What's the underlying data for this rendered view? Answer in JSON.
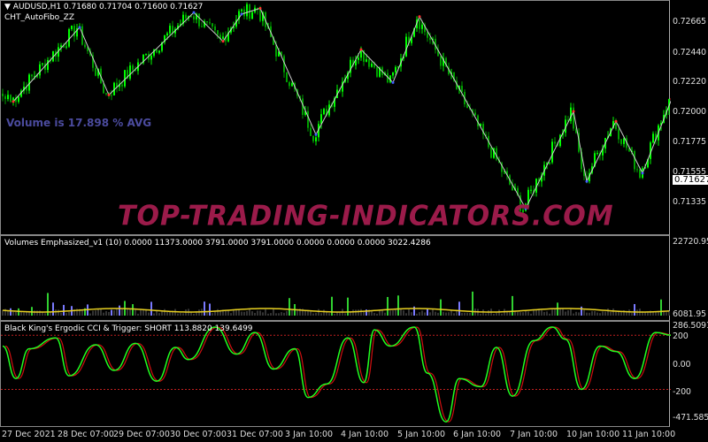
{
  "main": {
    "symbol_line": "AUDUSD,H1  0.71680 0.71704 0.71600 0.71627",
    "indicator": "CHT_AutoFibo_ZZ",
    "volume_text": "Volume is 17.898 % AVG",
    "watermark": "TOP-TRADING-INDICATORS.COM",
    "current_price": "0.71627",
    "price_ticks": [
      "0.72665",
      "0.72440",
      "0.72220",
      "0.72000",
      "0.71775",
      "0.71555",
      "0.71335"
    ],
    "price_range": [
      0.7109,
      0.7283
    ],
    "zigzag": [
      [
        4,
        0.72085
      ],
      [
        29,
        0.72634
      ],
      [
        40,
        0.72134
      ],
      [
        72,
        0.72744
      ],
      [
        83,
        0.72531
      ],
      [
        90,
        0.72732
      ],
      [
        97,
        0.72775
      ],
      [
        118,
        0.71841
      ],
      [
        135,
        0.7247
      ],
      [
        147,
        0.72226
      ],
      [
        157,
        0.72714
      ],
      [
        197,
        0.71293
      ],
      [
        215,
        0.72012
      ],
      [
        220,
        0.71494
      ],
      [
        231,
        0.71939
      ],
      [
        241,
        0.71555
      ],
      [
        252,
        0.72104
      ]
    ],
    "colors": {
      "bull": "#00ff00",
      "bear": "#00a000",
      "zigzag": "#cccccc"
    }
  },
  "volume": {
    "title": "Volumes Emphasized_v1  (10)   0.0000 11373.0000 3791.0000 3791.0000 0.0000 0.0000 0.0000 3022.4286",
    "ticks": [
      "22720.95",
      "6081.95"
    ]
  },
  "cci": {
    "title": "Black King's Ergodic CCI & Trigger: SHORT 113.8820 139.6499",
    "ticks": [
      "286.5091",
      "200",
      "0.00",
      "-200",
      "-471.5856"
    ],
    "range": [
      -471.5856,
      286.5091
    ],
    "values": [
      [
        0,
        120
      ],
      [
        5,
        -120
      ],
      [
        10,
        100
      ],
      [
        20,
        180
      ],
      [
        25,
        -100
      ],
      [
        35,
        130
      ],
      [
        42,
        -60
      ],
      [
        50,
        140
      ],
      [
        58,
        -140
      ],
      [
        65,
        110
      ],
      [
        70,
        20
      ],
      [
        80,
        260
      ],
      [
        88,
        60
      ],
      [
        95,
        220
      ],
      [
        102,
        -50
      ],
      [
        110,
        100
      ],
      [
        115,
        -260
      ],
      [
        122,
        -160
      ],
      [
        130,
        180
      ],
      [
        136,
        -150
      ],
      [
        140,
        240
      ],
      [
        146,
        120
      ],
      [
        155,
        260
      ],
      [
        160,
        -80
      ],
      [
        167,
        -440
      ],
      [
        172,
        -120
      ],
      [
        180,
        -180
      ],
      [
        186,
        110
      ],
      [
        192,
        -250
      ],
      [
        200,
        160
      ],
      [
        207,
        260
      ],
      [
        212,
        170
      ],
      [
        218,
        -200
      ],
      [
        225,
        120
      ],
      [
        231,
        80
      ],
      [
        238,
        -120
      ],
      [
        246,
        220
      ],
      [
        252,
        200
      ]
    ]
  },
  "time_axis": [
    "27 Dec 2021",
    "28 Dec 07:00",
    "29 Dec 07:00",
    "30 Dec 07:00",
    "31 Dec 07:00",
    "3 Jan 10:00",
    "4 Jan 10:00",
    "5 Jan 10:00",
    "6 Jan 10:00",
    "7 Jan 10:00",
    "10 Jan 10:00",
    "11 Jan 10:00"
  ]
}
